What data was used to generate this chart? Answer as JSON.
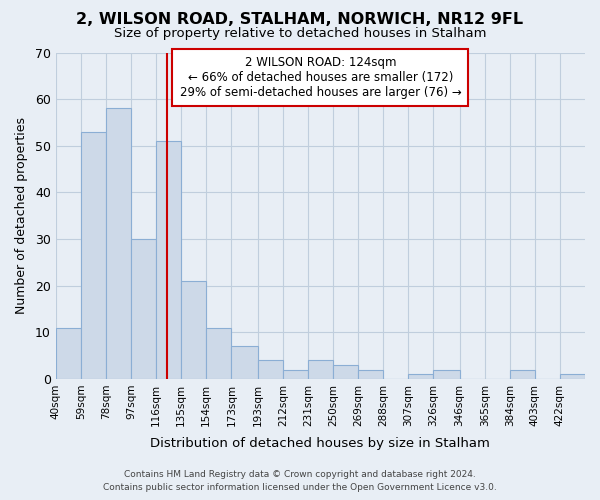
{
  "title": "2, WILSON ROAD, STALHAM, NORWICH, NR12 9FL",
  "subtitle": "Size of property relative to detached houses in Stalham",
  "xlabel": "Distribution of detached houses by size in Stalham",
  "ylabel": "Number of detached properties",
  "bin_edges": [
    40,
    59,
    78,
    97,
    116,
    135,
    154,
    173,
    193,
    212,
    231,
    250,
    269,
    288,
    307,
    326,
    346,
    365,
    384,
    403,
    422,
    441
  ],
  "counts": [
    11,
    53,
    58,
    30,
    51,
    21,
    11,
    7,
    4,
    2,
    4,
    3,
    2,
    0,
    1,
    2,
    0,
    0,
    2,
    0,
    1
  ],
  "bar_color": "#cdd9e8",
  "bar_edge_color": "#8baed4",
  "property_size": 124,
  "vline_color": "#cc0000",
  "annotation_text": "2 WILSON ROAD: 124sqm\n← 66% of detached houses are smaller (172)\n29% of semi-detached houses are larger (76) →",
  "annotation_box_color": "#ffffff",
  "annotation_box_edge": "#cc0000",
  "ylim": [
    0,
    70
  ],
  "yticks": [
    0,
    10,
    20,
    30,
    40,
    50,
    60,
    70
  ],
  "tick_labels": [
    "40sqm",
    "59sqm",
    "78sqm",
    "97sqm",
    "116sqm",
    "135sqm",
    "154sqm",
    "173sqm",
    "193sqm",
    "212sqm",
    "231sqm",
    "250sqm",
    "269sqm",
    "288sqm",
    "307sqm",
    "326sqm",
    "346sqm",
    "365sqm",
    "384sqm",
    "403sqm",
    "422sqm"
  ],
  "footer_line1": "Contains HM Land Registry data © Crown copyright and database right 2024.",
  "footer_line2": "Contains public sector information licensed under the Open Government Licence v3.0.",
  "bg_color": "#e8eef5",
  "plot_bg_color": "#e8eef5",
  "grid_color": "#c0cedd"
}
